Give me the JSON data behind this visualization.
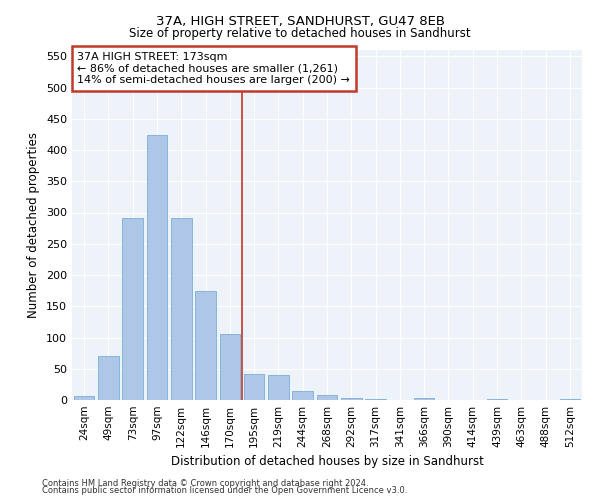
{
  "title1": "37A, HIGH STREET, SANDHURST, GU47 8EB",
  "title2": "Size of property relative to detached houses in Sandhurst",
  "xlabel": "Distribution of detached houses by size in Sandhurst",
  "ylabel": "Number of detached properties",
  "categories": [
    "24sqm",
    "49sqm",
    "73sqm",
    "97sqm",
    "122sqm",
    "146sqm",
    "170sqm",
    "195sqm",
    "219sqm",
    "244sqm",
    "268sqm",
    "292sqm",
    "317sqm",
    "341sqm",
    "366sqm",
    "390sqm",
    "414sqm",
    "439sqm",
    "463sqm",
    "488sqm",
    "512sqm"
  ],
  "values": [
    7,
    70,
    291,
    424,
    291,
    175,
    105,
    42,
    40,
    14,
    8,
    3,
    2,
    0,
    3,
    0,
    0,
    2,
    0,
    0,
    2
  ],
  "bar_color": "#aec6e8",
  "bar_edge_color": "#7bafd4",
  "annotation_title": "37A HIGH STREET: 173sqm",
  "annotation_line1": "← 86% of detached houses are smaller (1,261)",
  "annotation_line2": "14% of semi-detached houses are larger (200) →",
  "vline_color": "#c0392b",
  "vline_pos": 6.5,
  "box_color": "#c0392b",
  "footer1": "Contains HM Land Registry data © Crown copyright and database right 2024.",
  "footer2": "Contains public sector information licensed under the Open Government Licence v3.0.",
  "bg_color": "#eef2f9",
  "ylim": [
    0,
    560
  ],
  "yticks": [
    0,
    50,
    100,
    150,
    200,
    250,
    300,
    350,
    400,
    450,
    500,
    550
  ]
}
